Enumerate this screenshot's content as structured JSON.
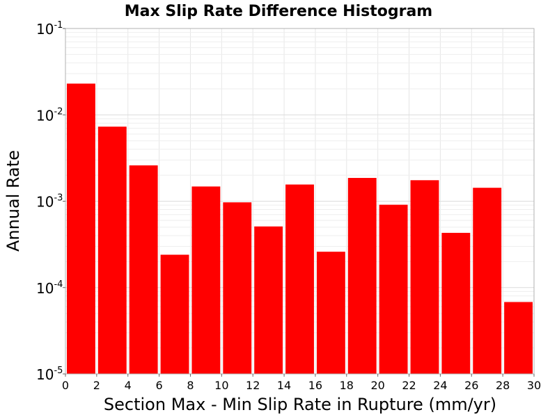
{
  "chart_data": {
    "type": "bar",
    "title": "Max Slip Rate Difference Histogram",
    "xlabel": "Section Max - Min Slip Rate in Rupture (mm/yr)",
    "ylabel": "Annual Rate",
    "xlim": [
      0,
      30
    ],
    "ylim": [
      1e-05,
      0.1
    ],
    "yscale": "log",
    "grid": true,
    "bar_color": "#ff0000",
    "bin_width": 2,
    "x": [
      1,
      3,
      5,
      7,
      9,
      11,
      13,
      15,
      17,
      19,
      21,
      23,
      25,
      27,
      29
    ],
    "values": [
      0.023,
      0.0073,
      0.0026,
      0.00024,
      0.00148,
      0.00097,
      0.00051,
      0.00156,
      0.00026,
      0.00186,
      0.00091,
      0.00175,
      0.00043,
      0.00143,
      6.8e-05
    ],
    "xticks": [
      "0",
      "2",
      "4",
      "6",
      "8",
      "10",
      "12",
      "14",
      "16",
      "18",
      "20",
      "22",
      "24",
      "26",
      "28",
      "30"
    ],
    "yticks": [
      {
        "base": "10",
        "exp": "-1"
      },
      {
        "base": "10",
        "exp": "-2"
      },
      {
        "base": "10",
        "exp": "-3"
      },
      {
        "base": "10",
        "exp": "-4"
      },
      {
        "base": "10",
        "exp": "-5"
      }
    ]
  }
}
